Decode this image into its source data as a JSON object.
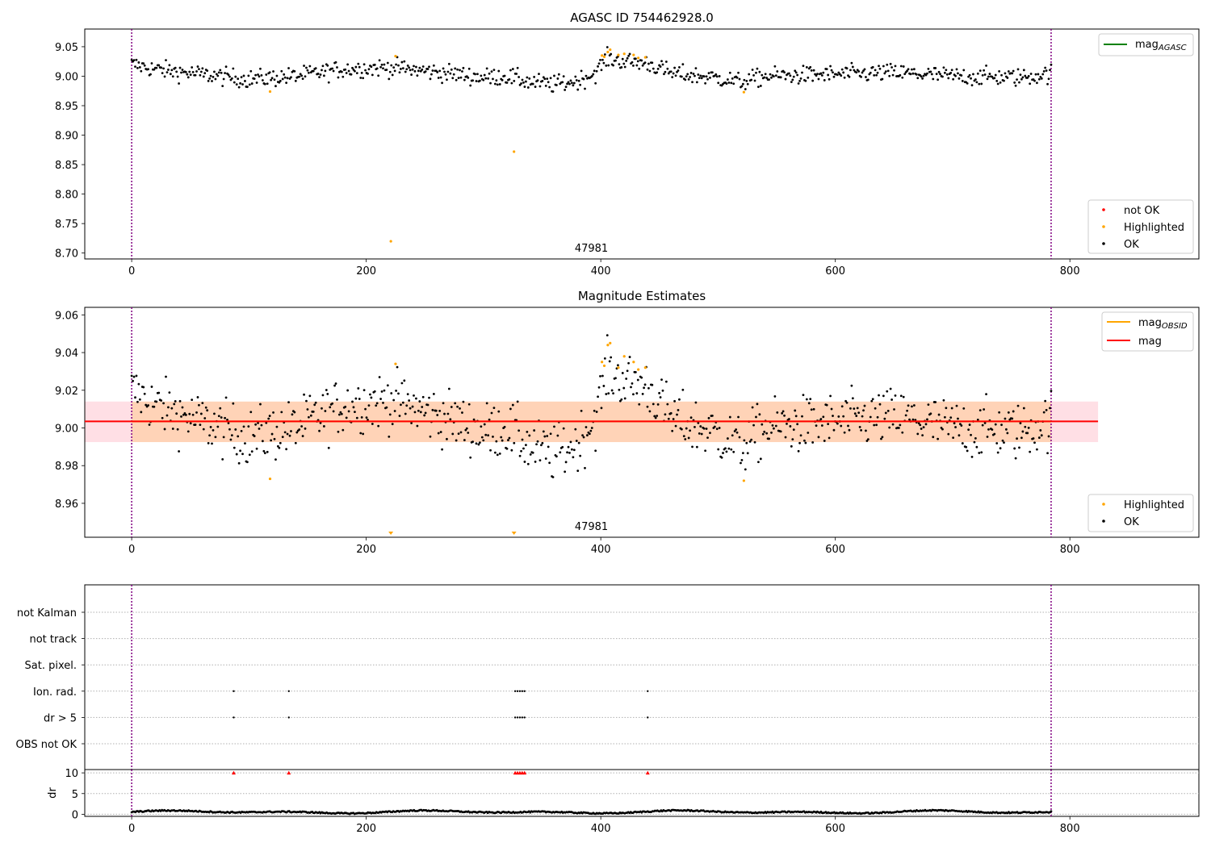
{
  "chart_data": [
    {
      "type": "scatter",
      "title": "AGASC ID 754462928.0",
      "xlim": [
        -40,
        910
      ],
      "ylim": [
        8.69,
        9.08
      ],
      "xticks": [
        "0",
        "200",
        "400",
        "600",
        "800"
      ],
      "yticks": [
        "9.05",
        "9.00",
        "8.95",
        "8.90",
        "8.85",
        "8.80",
        "8.75",
        "8.70"
      ],
      "vlines": [
        0,
        784
      ],
      "obsid_label": "47981",
      "lines": [
        {
          "name": "mag_AGASC",
          "color": "#008000"
        }
      ],
      "legend_lines": [
        "mag"
      ],
      "legend_lines_sub": [
        "AGASC"
      ],
      "legend_points": [
        {
          "name": "not OK",
          "color": "#ff0000"
        },
        {
          "name": "Highlighted",
          "color": "#ffa500"
        },
        {
          "name": "OK",
          "color": "#000000"
        }
      ],
      "ok_series": {
        "n": 780,
        "x_start": 0,
        "x_end": 784,
        "profile_x": [
          0,
          20,
          60,
          100,
          140,
          180,
          220,
          260,
          300,
          320,
          340,
          360,
          380,
          395,
          405,
          420,
          440,
          460,
          500,
          520,
          540,
          600,
          650,
          700,
          760,
          784
        ],
        "profile_y": [
          9.02,
          9.012,
          9.003,
          8.995,
          9.0,
          9.012,
          9.015,
          9.007,
          8.998,
          9.0,
          8.99,
          8.986,
          8.992,
          9.005,
          9.03,
          9.025,
          9.022,
          9.005,
          8.997,
          8.99,
          9.0,
          9.003,
          9.006,
          9.0,
          8.998,
          9.005
        ],
        "noise": 0.0075
      },
      "highlighted_points": [
        {
          "x": 118,
          "y": 8.974
        },
        {
          "x": 221,
          "y": 8.72
        },
        {
          "x": 225,
          "y": 9.034
        },
        {
          "x": 326,
          "y": 8.872
        },
        {
          "x": 401,
          "y": 9.035
        },
        {
          "x": 403,
          "y": 9.033
        },
        {
          "x": 406,
          "y": 9.041
        },
        {
          "x": 408,
          "y": 9.045
        },
        {
          "x": 415,
          "y": 9.036
        },
        {
          "x": 420,
          "y": 9.038
        },
        {
          "x": 428,
          "y": 9.036
        },
        {
          "x": 432,
          "y": 9.031
        },
        {
          "x": 438,
          "y": 9.032
        },
        {
          "x": 522,
          "y": 8.973
        }
      ]
    },
    {
      "type": "scatter",
      "title": "Magnitude Estimates",
      "xlim": [
        -40,
        910
      ],
      "ylim": [
        8.942,
        9.064
      ],
      "xticks": [
        "0",
        "200",
        "400",
        "600",
        "800"
      ],
      "yticks": [
        "9.06",
        "9.04",
        "9.02",
        "9.00",
        "8.98",
        "8.96"
      ],
      "vlines": [
        0,
        784
      ],
      "obsid_label": "47981",
      "mag_line": {
        "y": 9.0035,
        "x_range": [
          -40,
          824
        ],
        "band": [
          8.9925,
          9.014
        ]
      },
      "lines": [
        {
          "name": "mag_OBSID",
          "color": "#ffa500"
        },
        {
          "name": "mag",
          "color": "#ff0000"
        }
      ],
      "legend_lines": [
        "mag",
        "mag"
      ],
      "legend_lines_sub": [
        "OBSID",
        ""
      ],
      "legend_points": [
        {
          "name": "Highlighted",
          "color": "#ffa500"
        },
        {
          "name": "OK",
          "color": "#000000"
        }
      ],
      "highlighted_points": [
        {
          "x": 118,
          "y": 8.973
        },
        {
          "x": 225,
          "y": 9.034
        },
        {
          "x": 401,
          "y": 9.035
        },
        {
          "x": 403,
          "y": 9.033
        },
        {
          "x": 406,
          "y": 9.044
        },
        {
          "x": 408,
          "y": 9.045
        },
        {
          "x": 415,
          "y": 9.032
        },
        {
          "x": 420,
          "y": 9.038
        },
        {
          "x": 428,
          "y": 9.035
        },
        {
          "x": 432,
          "y": 9.031
        },
        {
          "x": 438,
          "y": 9.032
        },
        {
          "x": 522,
          "y": 8.972
        }
      ],
      "offscale_markers": [
        221,
        326
      ]
    },
    {
      "type": "scatter",
      "title": "",
      "xlim": [
        -40,
        910
      ],
      "vlines": [
        0,
        784
      ],
      "xticks": [
        "0",
        "200",
        "400",
        "600",
        "800"
      ],
      "flag_rows": [
        "not Kalman",
        "not track",
        "Sat. pixel.",
        "Ion. rad.",
        "dr > 5",
        "OBS not OK"
      ],
      "flag_points": [
        {
          "row": "Ion. rad.",
          "x": [
            87,
            134,
            327,
            329,
            331,
            333,
            335,
            440
          ]
        },
        {
          "row": "dr > 5",
          "x": [
            87,
            134,
            327,
            329,
            331,
            333,
            335,
            440
          ]
        }
      ],
      "dr_axis": {
        "label": "dr",
        "ylim": [
          -0.5,
          10.8
        ],
        "yticks": [
          "10",
          "5",
          "0"
        ]
      },
      "dr_clipped_x": [
        87,
        134,
        327,
        329,
        331,
        333,
        335,
        440
      ],
      "dr_series": {
        "n": 760,
        "x_start": 0,
        "x_end": 784,
        "base": 0.55,
        "amplitude": 0.4
      }
    }
  ]
}
